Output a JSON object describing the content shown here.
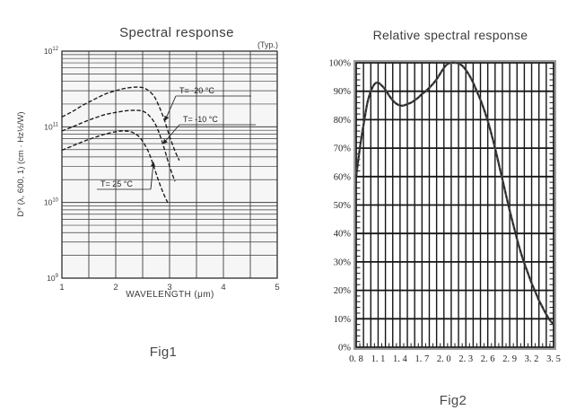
{
  "colors": {
    "fig1_grid": "#3f3f3f",
    "fig1_frame": "#2e2e2e",
    "fig1_curve": "#1a1a1a",
    "fig1_plot_bg": "#f6f6f6",
    "fig2_grid": "#161616",
    "fig2_frame_gray": "#9c9c9c",
    "fig2_curve": "#474747",
    "text": "#3a3a3a"
  },
  "chart_data": [
    {
      "id": "fig1",
      "type": "line",
      "title": "Spectral response",
      "annotation": "(Typ.)",
      "caption": "Fig1",
      "xlabel": "WAVELENGTH (μm)",
      "ylabel": "D* (λ, 600, 1) (cm · Hz½/W)",
      "x_ticks": [
        1,
        2,
        3,
        4,
        5
      ],
      "x_minor_step": 0.5,
      "xlim": [
        1,
        5
      ],
      "y_scale": "log",
      "y_tick_exponents": [
        9,
        10,
        11,
        12
      ],
      "ylim": [
        1000000000.0,
        1000000000000.0
      ],
      "grid": true,
      "legend_position": "inline-labels",
      "series": [
        {
          "name": "T= -20 °C",
          "points": [
            [
              1,
              135000000000.0
            ],
            [
              1.2,
              160000000000.0
            ],
            [
              1.4,
              195000000000.0
            ],
            [
              1.6,
              230000000000.0
            ],
            [
              1.8,
              270000000000.0
            ],
            [
              2.0,
              300000000000.0
            ],
            [
              2.2,
              325000000000.0
            ],
            [
              2.4,
              335000000000.0
            ],
            [
              2.55,
              320000000000.0
            ],
            [
              2.7,
              260000000000.0
            ],
            [
              2.8,
              190000000000.0
            ],
            [
              2.9,
              125000000000.0
            ],
            [
              3.0,
              75000000000.0
            ],
            [
              3.1,
              48000000000.0
            ],
            [
              3.18,
              36000000000.0
            ]
          ]
        },
        {
          "name": "T= -10 °C",
          "points": [
            [
              1,
              88000000000.0
            ],
            [
              1.2,
              100000000000.0
            ],
            [
              1.4,
              115000000000.0
            ],
            [
              1.6,
              130000000000.0
            ],
            [
              1.8,
              145000000000.0
            ],
            [
              2.0,
              155000000000.0
            ],
            [
              2.2,
              163000000000.0
            ],
            [
              2.4,
              165000000000.0
            ],
            [
              2.55,
              155000000000.0
            ],
            [
              2.7,
              120000000000.0
            ],
            [
              2.8,
              85000000000.0
            ],
            [
              2.9,
              52000000000.0
            ],
            [
              3.0,
              30000000000.0
            ],
            [
              3.1,
              19000000000.0
            ]
          ]
        },
        {
          "name": "T= 25 °C",
          "points": [
            [
              1,
              49000000000.0
            ],
            [
              1.2,
              56000000000.0
            ],
            [
              1.4,
              64000000000.0
            ],
            [
              1.6,
              72000000000.0
            ],
            [
              1.8,
              80000000000.0
            ],
            [
              2.0,
              86000000000.0
            ],
            [
              2.15,
              88000000000.0
            ],
            [
              2.3,
              85000000000.0
            ],
            [
              2.45,
              72000000000.0
            ],
            [
              2.6,
              48000000000.0
            ],
            [
              2.7,
              31000000000.0
            ],
            [
              2.8,
              19000000000.0
            ],
            [
              2.9,
              12500000000.0
            ],
            [
              2.98,
              9500000000.0
            ]
          ]
        }
      ]
    },
    {
      "id": "fig2",
      "type": "line",
      "title": "Relative spectral response",
      "caption": "Fig2",
      "xlabel": "",
      "ylabel": "",
      "x_tick_labels": [
        "0. 8",
        "1. 1",
        "1. 4",
        "1. 7",
        "2. 0",
        "2. 3",
        "2. 6",
        "2. 9",
        "3. 2",
        "3. 5"
      ],
      "x_tick_values": [
        0.8,
        1.1,
        1.4,
        1.7,
        2.0,
        2.3,
        2.6,
        2.9,
        3.2,
        3.5
      ],
      "x_grid_step": 0.1,
      "x_minor_step": 0.05,
      "xlim": [
        0.8,
        3.5
      ],
      "y_tick_labels": [
        "0%",
        "10%",
        "20%",
        "30%",
        "40%",
        "50%",
        "60%",
        "70%",
        "80%",
        "90%",
        "100%"
      ],
      "y_tick_values": [
        0,
        10,
        20,
        30,
        40,
        50,
        60,
        70,
        80,
        90,
        100
      ],
      "y_minor_step": 2,
      "ylim": [
        0,
        100
      ],
      "grid": true,
      "series": [
        {
          "name": "relative spectral response",
          "points": [
            [
              0.8,
              60
            ],
            [
              0.85,
              70
            ],
            [
              0.9,
              78
            ],
            [
              0.95,
              85.5
            ],
            [
              1.0,
              90
            ],
            [
              1.05,
              92.5
            ],
            [
              1.1,
              93
            ],
            [
              1.15,
              92
            ],
            [
              1.2,
              90.5
            ],
            [
              1.25,
              88.5
            ],
            [
              1.3,
              86.8
            ],
            [
              1.35,
              85.6
            ],
            [
              1.4,
              85
            ],
            [
              1.45,
              85
            ],
            [
              1.5,
              85.5
            ],
            [
              1.55,
              86
            ],
            [
              1.6,
              86.8
            ],
            [
              1.65,
              87.8
            ],
            [
              1.7,
              89
            ],
            [
              1.75,
              90
            ],
            [
              1.8,
              91.2
            ],
            [
              1.85,
              92.6
            ],
            [
              1.9,
              94.2
            ],
            [
              1.95,
              96.2
            ],
            [
              2.0,
              98.2
            ],
            [
              2.05,
              99.6
            ],
            [
              2.1,
              100
            ],
            [
              2.15,
              100
            ],
            [
              2.2,
              99.8
            ],
            [
              2.25,
              99
            ],
            [
              2.3,
              97.5
            ],
            [
              2.35,
              95.5
            ],
            [
              2.4,
              93
            ],
            [
              2.45,
              90
            ],
            [
              2.5,
              87
            ],
            [
              2.55,
              83.5
            ],
            [
              2.6,
              79.5
            ],
            [
              2.65,
              75
            ],
            [
              2.7,
              70
            ],
            [
              2.75,
              64.5
            ],
            [
              2.8,
              59
            ],
            [
              2.85,
              53.5
            ],
            [
              2.9,
              48
            ],
            [
              2.95,
              43
            ],
            [
              3.0,
              38
            ],
            [
              3.05,
              33.5
            ],
            [
              3.1,
              29.5
            ],
            [
              3.15,
              26
            ],
            [
              3.2,
              22.5
            ],
            [
              3.25,
              19.5
            ],
            [
              3.3,
              16.5
            ],
            [
              3.35,
              14
            ],
            [
              3.4,
              11.5
            ],
            [
              3.45,
              9.5
            ],
            [
              3.5,
              8
            ]
          ]
        }
      ]
    }
  ]
}
